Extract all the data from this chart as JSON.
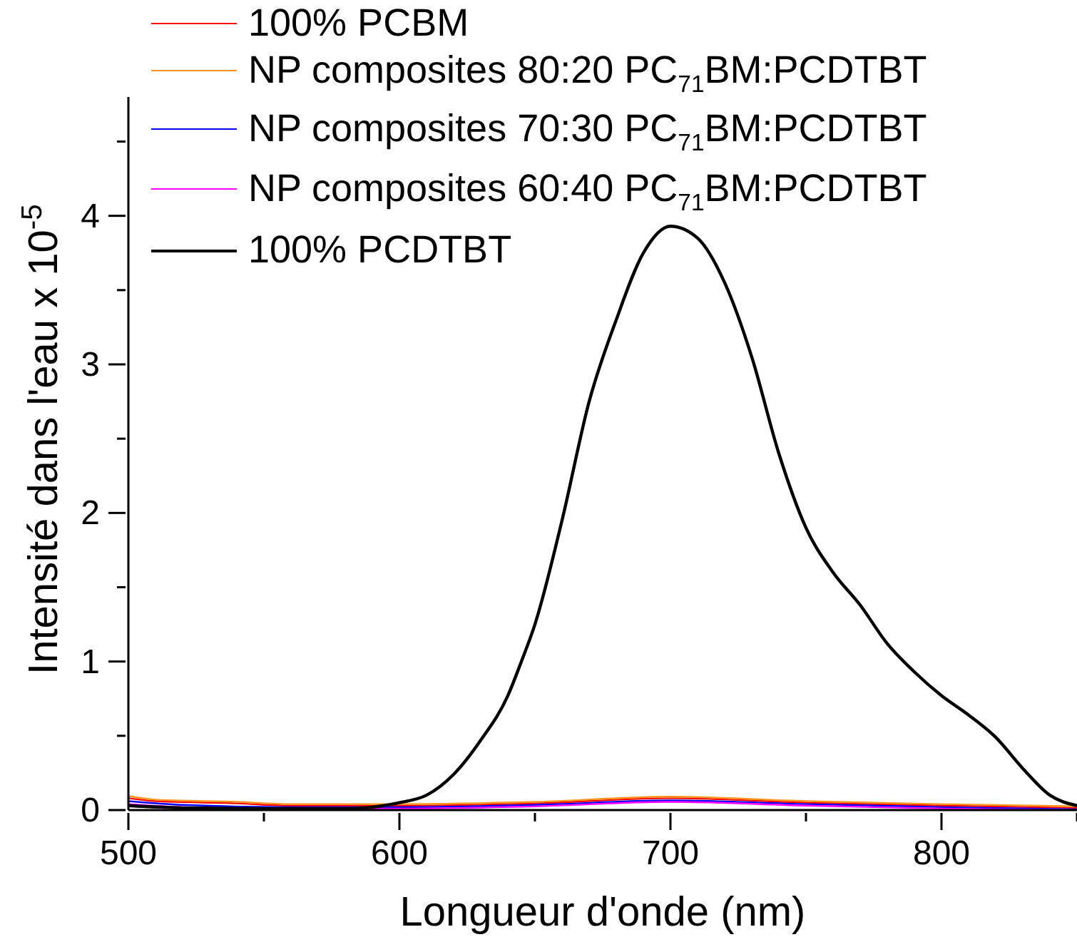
{
  "chart_data": {
    "type": "line",
    "xlabel": "Longueur d'onde (nm)",
    "ylabel": "Intensité dans l'eau x 10$^{-5}$",
    "xlim": [
      500,
      850
    ],
    "xticks": [
      500,
      {
        "value": 550,
        "label": null
      },
      600,
      {
        "value": 650,
        "label": null
      },
      700,
      {
        "value": 750,
        "label": null
      },
      800,
      {
        "value": 850,
        "label": null
      }
    ],
    "ylim": [
      0,
      4.8
    ],
    "yticks": [
      0,
      {
        "value": 0.5,
        "label": null
      },
      1,
      {
        "value": 1.5,
        "label": null
      },
      2,
      {
        "value": 2.5,
        "label": null
      },
      3,
      {
        "value": 3.5,
        "label": null
      },
      4,
      {
        "value": 4.5,
        "label": null
      }
    ],
    "grid": false,
    "legend": "top left",
    "marker": "none",
    "line_style": "solid",
    "series": [
      {
        "name": "100% PCBM",
        "color": "#ff0000",
        "x": [
          500,
          510,
          540,
          560,
          600,
          650,
          700,
          750,
          800,
          850
        ],
        "values": [
          0.08,
          0.06,
          0.045,
          0.03,
          0.03,
          0.045,
          0.08,
          0.05,
          0.03,
          0.015
        ]
      },
      {
        "name": "NP composites 80:20 PC$_{71}$BM:PCDTBT",
        "color": "#f7931e",
        "x": [
          500,
          510,
          540,
          560,
          600,
          650,
          700,
          750,
          800,
          850
        ],
        "values": [
          0.095,
          0.07,
          0.055,
          0.04,
          0.04,
          0.055,
          0.09,
          0.06,
          0.04,
          0.025
        ]
      },
      {
        "name": "NP composites 70:30 PC$_{71}$BM:PCDTBT",
        "color": "#0000ff",
        "x": [
          500,
          520,
          560,
          600,
          650,
          700,
          750,
          800,
          850
        ],
        "values": [
          0.06,
          0.035,
          0.02,
          0.02,
          0.035,
          0.065,
          0.04,
          0.02,
          0.005
        ]
      },
      {
        "name": "NP composites 60:40 PC$_{71}$BM:PCDTBT",
        "color": "#ff00ff",
        "x": [
          500,
          520,
          560,
          600,
          650,
          700,
          750,
          800,
          850
        ],
        "values": [
          0.04,
          0.02,
          0.01,
          0.01,
          0.025,
          0.055,
          0.03,
          0.01,
          0
        ]
      },
      {
        "name": "100% PCDTBT",
        "color": "#000000",
        "x": [
          500,
          520,
          550,
          580,
          600,
          610,
          620,
          630,
          640,
          645,
          650,
          660,
          670,
          680,
          690,
          700,
          710,
          720,
          730,
          740,
          750,
          760,
          770,
          780,
          790,
          800,
          810,
          820,
          830,
          840,
          850
        ],
        "values": [
          0.03,
          0.015,
          0.01,
          0.01,
          0.05,
          0.1,
          0.24,
          0.47,
          0.77,
          1.0,
          1.25,
          1.95,
          2.75,
          3.3,
          3.75,
          3.93,
          3.85,
          3.55,
          3.05,
          2.4,
          1.9,
          1.6,
          1.38,
          1.12,
          0.93,
          0.77,
          0.64,
          0.49,
          0.28,
          0.1,
          0.03
        ]
      }
    ]
  }
}
